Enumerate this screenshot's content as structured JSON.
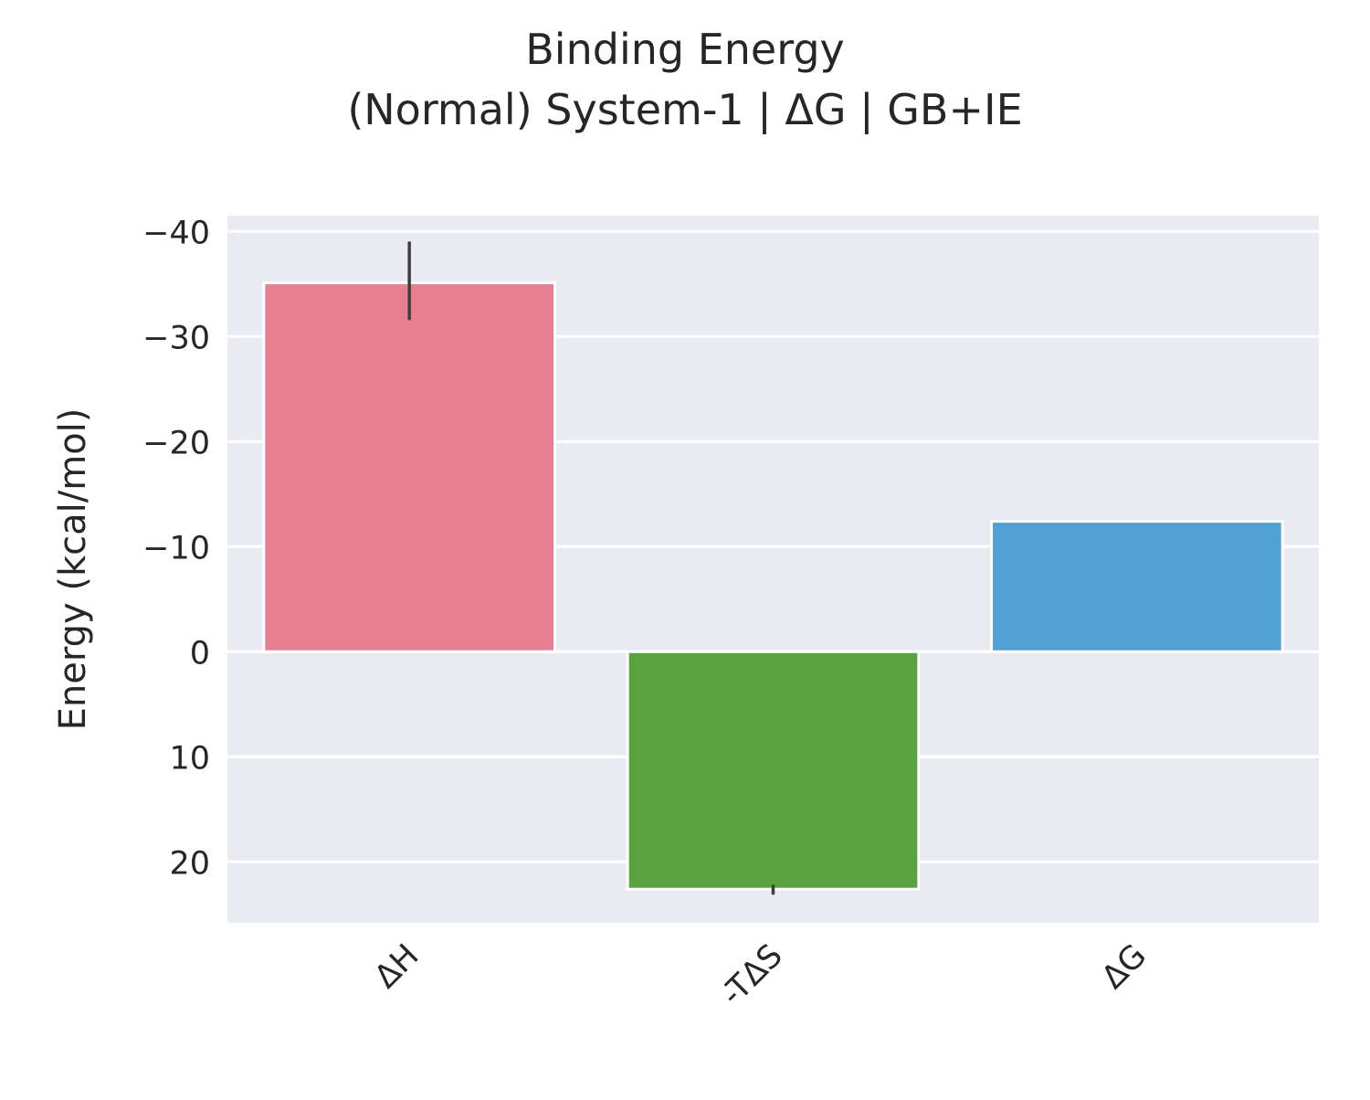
{
  "chart_data": {
    "type": "bar",
    "title": "Binding Energy",
    "subtitle": "(Normal) System-1 | ΔG | GB+IE",
    "xlabel": "",
    "ylabel": "Energy (kcal/mol)",
    "categories": [
      "ΔH",
      "-TΔS",
      "ΔG"
    ],
    "values": [
      -35.1,
      22.6,
      -12.4
    ],
    "error_low": [
      -38.9,
      22.3
    ],
    "error_high": [
      -31.7,
      23.0
    ],
    "errors": [
      {
        "low": -38.9,
        "high": -31.7
      },
      {
        "low": 22.3,
        "high": 23.0
      },
      null
    ],
    "colors": [
      "#e77f93",
      "#59a141",
      "#52a0d5"
    ],
    "ylim": [
      -41.5,
      25.8
    ],
    "y_inverted": true,
    "yticks": [
      -40,
      -30,
      -20,
      -10,
      0,
      10,
      20
    ],
    "ytick_labels": [
      "−40",
      "−30",
      "−20",
      "−10",
      "0",
      "10",
      "20"
    ],
    "grid": true,
    "background": "#eaeaf2",
    "xtick_rotation": 45
  }
}
